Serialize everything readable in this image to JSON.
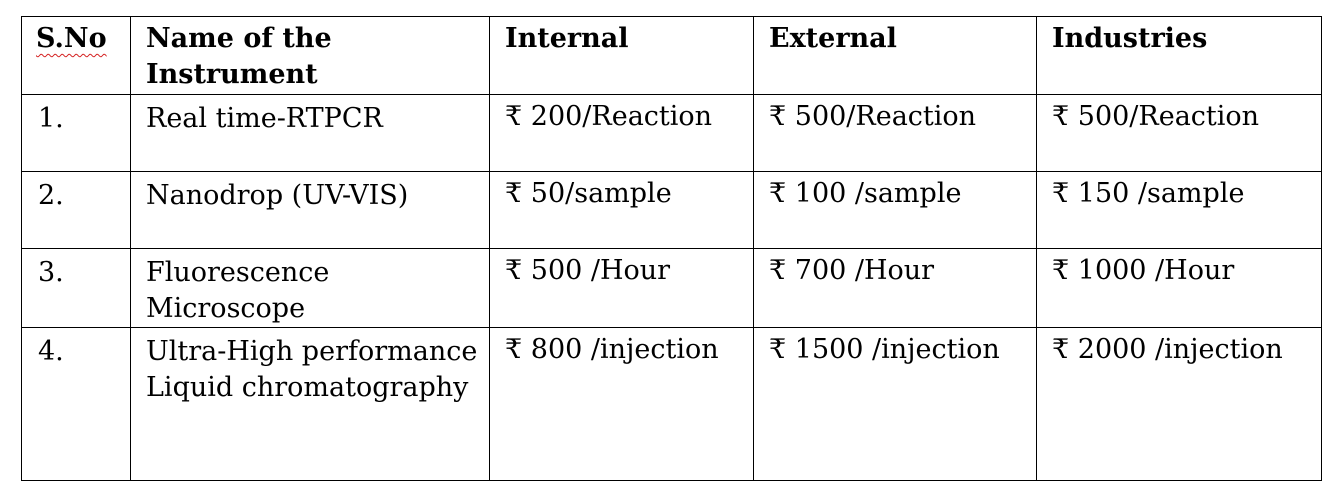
{
  "table": {
    "headers": {
      "sno": "S.No",
      "instrument": "Name of the Instrument",
      "internal": "Internal",
      "external": "External",
      "industries": "Industries"
    },
    "rows": [
      {
        "sno": "1.",
        "instrument": "Real time-RTPCR",
        "internal": "₹ 200/Reaction",
        "external": "₹ 500/Reaction",
        "industries": "₹ 500/Reaction"
      },
      {
        "sno": "2.",
        "instrument": "Nanodrop (UV-VIS)",
        "internal": "₹ 50/sample",
        "external": "₹ 100 /sample",
        "industries": "₹ 150 /sample"
      },
      {
        "sno": "3.",
        "instrument": "Fluorescence Microscope",
        "internal": "₹ 500 /Hour",
        "external": "₹ 700 /Hour",
        "industries": "₹ 1000 /Hour"
      },
      {
        "sno": "4.",
        "instrument": "Ultra-High performance Liquid chromatography",
        "internal": "₹ 800 /injection",
        "external": "₹ 1500 /injection",
        "industries": "₹ 2000 /injection"
      }
    ]
  }
}
